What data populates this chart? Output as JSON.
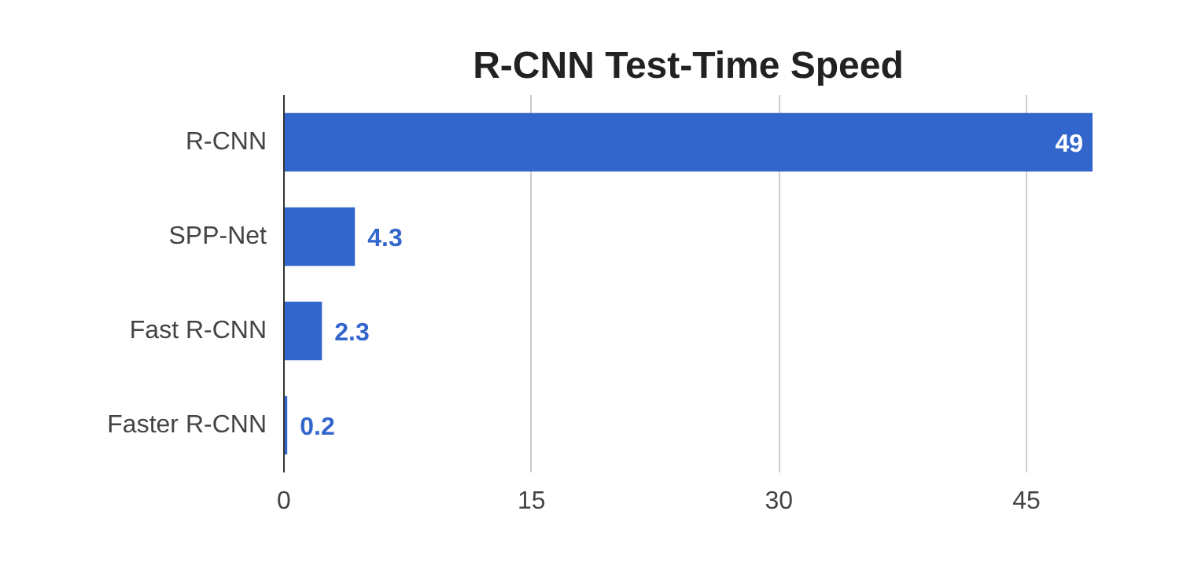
{
  "chart_data": {
    "type": "bar",
    "orientation": "horizontal",
    "title": "R-CNN Test-Time Speed",
    "categories": [
      "R-CNN",
      "SPP-Net",
      "Fast R-CNN",
      "Faster R-CNN"
    ],
    "values": [
      49,
      4.3,
      2.3,
      0.2
    ],
    "color": "#3366cc",
    "xlim": [
      0,
      49
    ],
    "xticks": [
      0,
      15,
      30,
      45
    ],
    "grid": "x",
    "data_labels": true
  }
}
